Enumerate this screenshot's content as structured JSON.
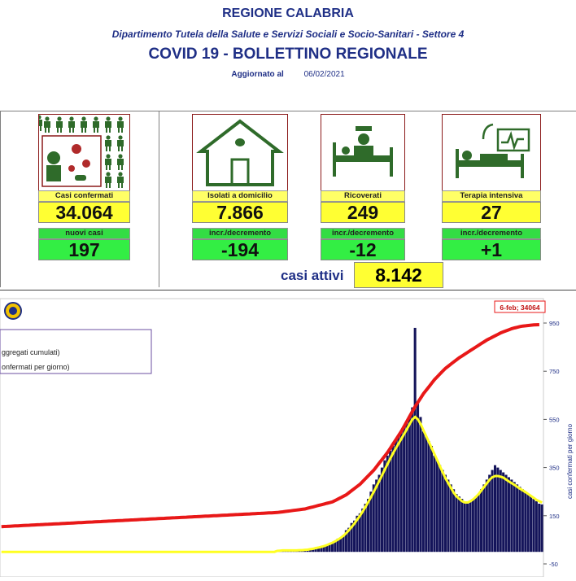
{
  "header": {
    "region": "REGIONE CALABRIA",
    "department": "Dipartimento Tutela della Salute e Servizi Sociali e Socio-Sanitari - Settore 4",
    "title": "COVID 19 - BOLLETTINO REGIONALE",
    "updated_label": "Aggiornato al",
    "updated_date": "06/02/2021"
  },
  "stats": {
    "confirmed": {
      "label": "Casi confermati",
      "value": "34.064",
      "sub_label": "nuovi casi",
      "sub_value": "197"
    },
    "home_isolation": {
      "label": "Isolati a domicilio",
      "value": "7.866",
      "sub_label": "incr./decremento",
      "sub_value": "-194"
    },
    "hospitalized": {
      "label": "Ricoverati",
      "value": "249",
      "sub_label": "incr./decremento",
      "sub_value": "-12"
    },
    "intensive_care": {
      "label": "Terapia intensiva",
      "value": "27",
      "sub_label": "incr./decremento",
      "sub_value": "+1"
    },
    "active_cases": {
      "label": "casi attivi",
      "value": "8.142"
    }
  },
  "colors": {
    "navy": "#1f2f86",
    "yellow": "#ffff33",
    "green": "#33ee44",
    "maroon": "#8b1a1a",
    "bars": "#14145a",
    "cumulative_line": "#e81818",
    "moving_avg": "#ffff22"
  },
  "chart_data": {
    "type": "bar",
    "legend": [
      "ggregati cumulati)",
      "onfermati per giorno)"
    ],
    "annotation": "6-feb; 34064",
    "y_right_label": "casi confermati per giorno",
    "y_ticks": [
      "950",
      "750",
      "550",
      "350",
      "150",
      "-50"
    ],
    "ylim": [
      -50,
      950
    ],
    "daily_cases_description": "Daily confirmed cases (bars) with moving average (yellow) and cumulative total (red)",
    "daily_cases": [
      0,
      0,
      0,
      0,
      0,
      0,
      0,
      0,
      0,
      0,
      0,
      0,
      0,
      0,
      0,
      0,
      0,
      0,
      0,
      0,
      0,
      0,
      0,
      0,
      0,
      0,
      0,
      0,
      0,
      0,
      0,
      0,
      0,
      0,
      0,
      0,
      0,
      0,
      0,
      0,
      0,
      0,
      0,
      0,
      0,
      0,
      0,
      0,
      0,
      0,
      0,
      0,
      0,
      0,
      0,
      0,
      0,
      0,
      0,
      0,
      0,
      0,
      0,
      0,
      0,
      0,
      0,
      0,
      0,
      0,
      0,
      0,
      0,
      0,
      0,
      0,
      0,
      0,
      0,
      0,
      0,
      0,
      0,
      0,
      0,
      0,
      0,
      0,
      0,
      0,
      0,
      0,
      0,
      0,
      0,
      0,
      0,
      0,
      0,
      0,
      5,
      8,
      6,
      7,
      5,
      6,
      4,
      5,
      8,
      9,
      7,
      10,
      12,
      15,
      18,
      20,
      22,
      25,
      30,
      35,
      40,
      45,
      55,
      60,
      70,
      90,
      100,
      120,
      130,
      150,
      160,
      180,
      200,
      220,
      250,
      280,
      300,
      320,
      350,
      380,
      400,
      420,
      440,
      460,
      480,
      500,
      520,
      540,
      560,
      600,
      930,
      620,
      560,
      500,
      480,
      460,
      440,
      400,
      380,
      360,
      340,
      320,
      300,
      280,
      260,
      240,
      230,
      220,
      210,
      200,
      210,
      220,
      230,
      240,
      260,
      280,
      300,
      320,
      340,
      360,
      350,
      340,
      330,
      320,
      310,
      300,
      290,
      280,
      270,
      260,
      250,
      240,
      230,
      220,
      210,
      200,
      197
    ],
    "moving_average": [
      0,
      0,
      0,
      0,
      0,
      0,
      0,
      0,
      0,
      0,
      0,
      0,
      0,
      0,
      0,
      0,
      0,
      0,
      0,
      0,
      0,
      0,
      0,
      0,
      0,
      0,
      0,
      0,
      0,
      0,
      0,
      0,
      0,
      0,
      0,
      0,
      0,
      0,
      0,
      0,
      0,
      0,
      0,
      0,
      0,
      0,
      0,
      0,
      0,
      0,
      0,
      0,
      0,
      0,
      0,
      0,
      0,
      0,
      0,
      0,
      0,
      0,
      0,
      0,
      0,
      0,
      0,
      0,
      0,
      0,
      0,
      0,
      0,
      0,
      0,
      0,
      0,
      0,
      0,
      0,
      0,
      0,
      0,
      0,
      0,
      0,
      0,
      0,
      0,
      0,
      0,
      0,
      0,
      0,
      0,
      0,
      0,
      0,
      0,
      0,
      4,
      5,
      6,
      6,
      6,
      6,
      6,
      6,
      7,
      7,
      8,
      9,
      11,
      13,
      16,
      18,
      21,
      24,
      28,
      33,
      38,
      44,
      51,
      58,
      67,
      78,
      90,
      104,
      118,
      134,
      150,
      168,
      187,
      207,
      228,
      250,
      272,
      295,
      318,
      342,
      365,
      388,
      410,
      430,
      450,
      470,
      490,
      510,
      530,
      550,
      560,
      550,
      530,
      505,
      480,
      455,
      430,
      405,
      380,
      355,
      330,
      305,
      285,
      265,
      245,
      230,
      220,
      210,
      205,
      205,
      210,
      218,
      228,
      240,
      255,
      270,
      285,
      300,
      310,
      315,
      315,
      312,
      308,
      300,
      292,
      285,
      278,
      270,
      262,
      255,
      248,
      240,
      232,
      224,
      216,
      210,
      205
    ],
    "cumulative": [
      5500,
      5520,
      5540,
      5560,
      5580,
      5600,
      5620,
      5640,
      5660,
      5680,
      5700,
      5720,
      5740,
      5760,
      5780,
      5800,
      5820,
      5840,
      5860,
      5880,
      5900,
      5920,
      5940,
      5960,
      5980,
      6000,
      6020,
      6040,
      6060,
      6080,
      6100,
      6120,
      6140,
      6160,
      6180,
      6200,
      6220,
      6240,
      6260,
      6280,
      6300,
      6320,
      6340,
      6360,
      6380,
      6400,
      6420,
      6440,
      6460,
      6480,
      6500,
      6520,
      6540,
      6560,
      6580,
      6600,
      6620,
      6640,
      6660,
      6680,
      6700,
      6720,
      6740,
      6760,
      6780,
      6800,
      6820,
      6840,
      6860,
      6880,
      6900,
      6920,
      6940,
      6960,
      6980,
      7000,
      7020,
      7040,
      7060,
      7080,
      7100,
      7120,
      7140,
      7160,
      7180,
      7200,
      7220,
      7240,
      7260,
      7280,
      7300,
      7320,
      7340,
      7360,
      7380,
      7400,
      7420,
      7440,
      7460,
      7480,
      7500,
      7550,
      7600,
      7650,
      7700,
      7750,
      7800,
      7850,
      7900,
      7950,
      8000,
      8100,
      8200,
      8300,
      8400,
      8500,
      8600,
      8700,
      8800,
      8900,
      9000,
      9200,
      9400,
      9600,
      9800,
      10000,
      10300,
      10600,
      10900,
      11200,
      11500,
      11900,
      12300,
      12700,
      13100,
      13500,
      14000,
      14500,
      15000,
      15500,
      16000,
      16600,
      17200,
      17800,
      18400,
      19000,
      19700,
      20400,
      21100,
      21800,
      22500,
      23100,
      23700,
      24300,
      24800,
      25300,
      25800,
      26300,
      26700,
      27100,
      27500,
      27900,
      28200,
      28500,
      28800,
      29100,
      29400,
      29650,
      29900,
      30150,
      30400,
      30650,
      30900,
      31150,
      31400,
      31650,
      31900,
      32100,
      32300,
      32500,
      32700,
      32900,
      33050,
      33200,
      33350,
      33500,
      33600,
      33700,
      33800,
      33867,
      33900,
      33950,
      34000,
      34030,
      34050,
      34064
    ]
  }
}
